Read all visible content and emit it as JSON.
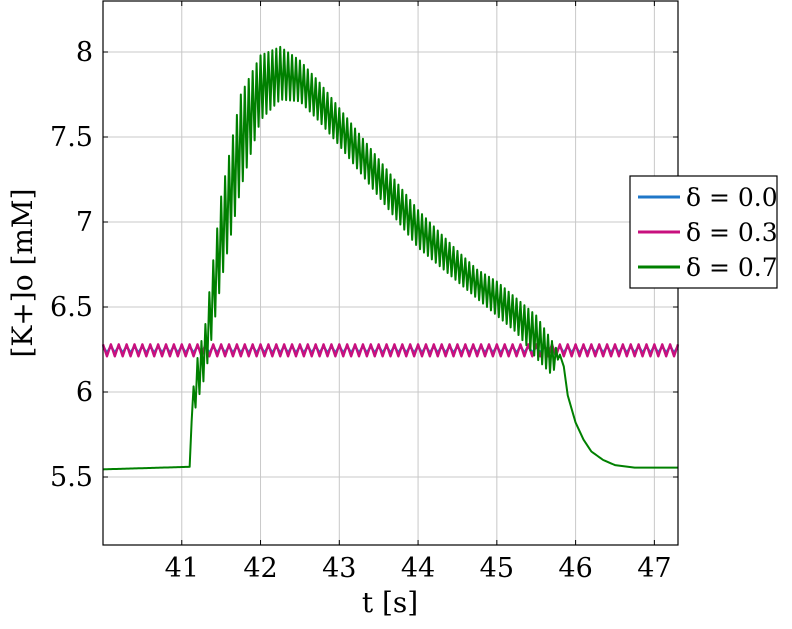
{
  "chart_data": {
    "type": "line",
    "xlabel": "t [s]",
    "ylabel": "[K+]o [mM]",
    "xlim": [
      40.0,
      47.3
    ],
    "ylim": [
      5.1,
      8.3
    ],
    "xticks": [
      41,
      42,
      43,
      44,
      45,
      46,
      47
    ],
    "yticks": [
      5.5,
      6,
      6.5,
      7,
      7.5,
      8
    ],
    "xtick_labels": [
      "41",
      "42",
      "43",
      "44",
      "45",
      "46",
      "47"
    ],
    "ytick_labels": [
      "5.5",
      "6",
      "6.5",
      "7",
      "7.5",
      "8"
    ],
    "grid": true,
    "legend_placement": "right-outside",
    "series": [
      {
        "name": "δ = 0.0",
        "color": "#1f77c8",
        "style": "oscillation",
        "baseline": 6.25,
        "amplitude": 0.02,
        "period_s": 0.1,
        "x_range": [
          40.0,
          47.3
        ]
      },
      {
        "name": "δ = 0.3",
        "color": "#c8107e",
        "style": "oscillation",
        "baseline": 6.245,
        "amplitude": 0.035,
        "period_s": 0.1,
        "x_range": [
          40.0,
          47.3
        ]
      },
      {
        "name": "δ = 0.7",
        "color": "#008000",
        "style": "band",
        "x": [
          40.0,
          41.1,
          41.11,
          41.2,
          41.3,
          41.5,
          41.75,
          42.0,
          42.25,
          42.5,
          42.75,
          43.0,
          43.25,
          43.5,
          43.75,
          44.0,
          44.25,
          44.5,
          44.75,
          45.0,
          45.25,
          45.5,
          45.7,
          45.8,
          45.85,
          45.9,
          46.0,
          46.1,
          46.2,
          46.35,
          46.5,
          46.75,
          47.0,
          47.3
        ],
        "lower": [
          5.545,
          5.56,
          5.8,
          5.95,
          6.1,
          6.65,
          7.2,
          7.6,
          7.72,
          7.71,
          7.59,
          7.45,
          7.3,
          7.15,
          7.0,
          6.85,
          6.75,
          6.65,
          6.55,
          6.45,
          6.35,
          6.2,
          6.1,
          6.22,
          6.15,
          5.98,
          5.82,
          5.72,
          5.65,
          5.6,
          5.57,
          5.555,
          5.555,
          5.555
        ],
        "upper": [
          5.545,
          5.56,
          5.9,
          6.2,
          6.4,
          7.15,
          7.75,
          7.98,
          8.03,
          7.95,
          7.82,
          7.67,
          7.52,
          7.37,
          7.22,
          7.07,
          6.95,
          6.83,
          6.72,
          6.65,
          6.55,
          6.45,
          6.3,
          6.22,
          6.15,
          5.98,
          5.82,
          5.72,
          5.65,
          5.6,
          5.57,
          5.555,
          5.555,
          5.555
        ]
      }
    ]
  }
}
